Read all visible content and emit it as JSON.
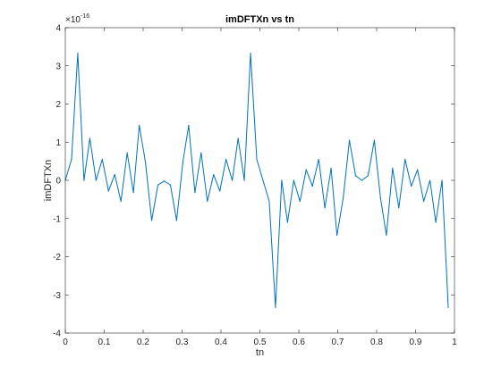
{
  "chart_data": {
    "type": "line",
    "title": "imDFTXn vs tn",
    "xlabel": "tn",
    "ylabel": "imDFTXn",
    "exponent_base": "×10",
    "exponent_power": "-16",
    "xlim": [
      0,
      1
    ],
    "ylim": [
      -4,
      4
    ],
    "x_ticks": [
      "0",
      "0.1",
      "0.2",
      "0.3",
      "0.4",
      "0.5",
      "0.6",
      "0.7",
      "0.8",
      "0.9",
      "1"
    ],
    "y_ticks": [
      "-4",
      "-3",
      "-2",
      "-1",
      "0",
      "1",
      "2",
      "3",
      "4"
    ],
    "grid": false,
    "line_color": "#0072bd",
    "series": [
      {
        "x": [
          0.0,
          0.016,
          0.032,
          0.048,
          0.063,
          0.079,
          0.095,
          0.111,
          0.127,
          0.143,
          0.159,
          0.175,
          0.19,
          0.206,
          0.222,
          0.238,
          0.254,
          0.27,
          0.286,
          0.302,
          0.317,
          0.333,
          0.349,
          0.365,
          0.381,
          0.397,
          0.413,
          0.429,
          0.444,
          0.46,
          0.476,
          0.492,
          0.508,
          0.524,
          0.54,
          0.556,
          0.571,
          0.587,
          0.603,
          0.619,
          0.635,
          0.651,
          0.667,
          0.683,
          0.698,
          0.714,
          0.73,
          0.746,
          0.762,
          0.778,
          0.794,
          0.81,
          0.825,
          0.841,
          0.857,
          0.873,
          0.889,
          0.905,
          0.921,
          0.937,
          0.952,
          0.968,
          0.984
        ],
        "y": [
          0,
          0.55,
          3.33,
          0,
          1.1,
          0,
          0.55,
          -0.28,
          0.15,
          -0.55,
          0.72,
          -0.32,
          1.44,
          0.47,
          -1.05,
          -0.12,
          -0.02,
          -0.12,
          -1.05,
          0.47,
          1.44,
          -0.32,
          0.72,
          -0.55,
          0.15,
          -0.28,
          0.55,
          0,
          1.1,
          0,
          3.33,
          0.55,
          0,
          -0.55,
          -3.33,
          0,
          -1.1,
          0,
          -0.55,
          0.28,
          -0.15,
          0.55,
          -0.72,
          0.32,
          -1.44,
          -0.47,
          1.05,
          0.12,
          0,
          0.12,
          1.05,
          -0.47,
          -1.44,
          0.32,
          -0.72,
          0.55,
          -0.15,
          0.28,
          -0.55,
          0,
          -1.1,
          0,
          -3.33
        ]
      }
    ]
  }
}
